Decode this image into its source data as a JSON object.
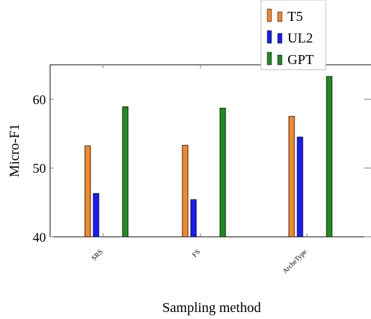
{
  "chart_data": {
    "type": "bar",
    "title": "",
    "xlabel": "Sampling method",
    "ylabel": "Micro-F1",
    "categories": [
      "SRS",
      "FS",
      "ArcheType"
    ],
    "series": [
      {
        "name": "T5",
        "color": "#f4872c",
        "values": [
          53.2,
          53.3,
          57.5
        ]
      },
      {
        "name": "UL2",
        "color": "#1a1aff",
        "values": [
          46.3,
          45.4,
          54.5
        ]
      },
      {
        "name": "GPT",
        "color": "#1f8c1f",
        "values": [
          58.9,
          58.7,
          63.3
        ]
      }
    ],
    "yticks": [
      40,
      50,
      60
    ],
    "ylim": [
      40,
      65
    ],
    "grid": false,
    "legend_position": "top-right"
  }
}
